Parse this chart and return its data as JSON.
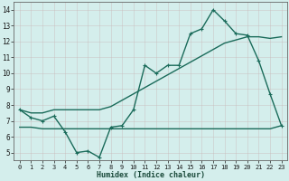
{
  "x": [
    0,
    1,
    2,
    3,
    4,
    5,
    6,
    7,
    8,
    9,
    10,
    11,
    12,
    13,
    14,
    15,
    16,
    17,
    18,
    19,
    20,
    21,
    22,
    23
  ],
  "line1": [
    7.7,
    7.2,
    7.0,
    7.3,
    6.3,
    5.0,
    5.1,
    4.7,
    6.6,
    6.7,
    7.7,
    10.5,
    10.0,
    10.5,
    10.5,
    12.5,
    12.8,
    14.0,
    13.3,
    12.5,
    12.4,
    10.8,
    8.7,
    6.7
  ],
  "line2": [
    7.7,
    7.5,
    7.5,
    7.7,
    7.7,
    7.7,
    7.7,
    7.7,
    7.9,
    8.3,
    8.7,
    9.1,
    9.5,
    9.9,
    10.3,
    10.7,
    11.1,
    11.5,
    11.9,
    12.1,
    12.3,
    12.3,
    12.2,
    12.3
  ],
  "line3": [
    6.6,
    6.6,
    6.5,
    6.5,
    6.5,
    6.5,
    6.5,
    6.5,
    6.5,
    6.5,
    6.5,
    6.5,
    6.5,
    6.5,
    6.5,
    6.5,
    6.5,
    6.5,
    6.5,
    6.5,
    6.5,
    6.5,
    6.5,
    6.7
  ],
  "line_color": "#1a6b5a",
  "bg_color": "#d4eeec",
  "grid_major_color": "#c0d4d2",
  "grid_minor_color": "#dcecea",
  "xlabel": "Humidex (Indice chaleur)",
  "ylim": [
    4.5,
    14.5
  ],
  "xlim": [
    -0.5,
    23.5
  ],
  "yticks": [
    5,
    6,
    7,
    8,
    9,
    10,
    11,
    12,
    13,
    14
  ],
  "xticks": [
    0,
    1,
    2,
    3,
    4,
    5,
    6,
    7,
    8,
    9,
    10,
    11,
    12,
    13,
    14,
    15,
    16,
    17,
    18,
    19,
    20,
    21,
    22,
    23
  ],
  "marker_size": 2.5,
  "line_width": 1.0,
  "xlabel_fontsize": 6.0,
  "tick_fontsize": 5.0
}
